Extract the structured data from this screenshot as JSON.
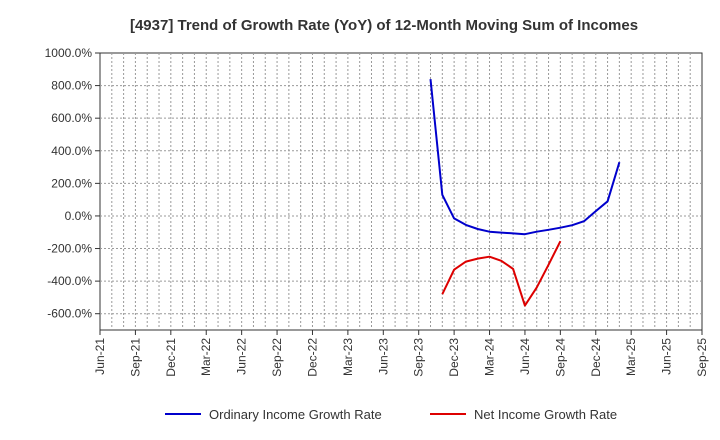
{
  "chart_data": {
    "type": "line",
    "title": "[4937]  Trend of Growth Rate (YoY) of 12-Month Moving Sum of Incomes",
    "xlabel": "",
    "ylabel": "",
    "ylim": [
      -700,
      1000
    ],
    "yticks": [
      1000,
      800,
      600,
      400,
      200,
      0,
      -200,
      -400,
      -600
    ],
    "ytick_labels": [
      "1000.0%",
      "800.0%",
      "600.0%",
      "400.0%",
      "200.0%",
      "0.0%",
      "-200.0%",
      "-400.0%",
      "-600.0%"
    ],
    "xticks": [
      "Jun-21",
      "Sep-21",
      "Dec-21",
      "Mar-22",
      "Jun-22",
      "Sep-22",
      "Dec-22",
      "Mar-23",
      "Jun-23",
      "Sep-23",
      "Dec-23",
      "Mar-24",
      "Jun-24",
      "Sep-24",
      "Dec-24",
      "Mar-25",
      "Jun-25",
      "Sep-25"
    ],
    "xrange": [
      "2021-06",
      "2025-09"
    ],
    "grid": true,
    "legend_position": "bottom",
    "series": [
      {
        "name": "Ordinary Income Growth Rate",
        "color": "#0000cc",
        "points": [
          [
            "2023-10",
            840
          ],
          [
            "2023-11",
            130
          ],
          [
            "2023-12",
            -15
          ],
          [
            "2024-01",
            -55
          ],
          [
            "2024-02",
            -80
          ],
          [
            "2024-03",
            -97
          ],
          [
            "2024-04",
            -102
          ],
          [
            "2024-05",
            -107
          ],
          [
            "2024-06",
            -112
          ],
          [
            "2024-07",
            -97
          ],
          [
            "2024-08",
            -85
          ],
          [
            "2024-09",
            -72
          ],
          [
            "2024-10",
            -57
          ],
          [
            "2024-11",
            -32
          ],
          [
            "2024-12",
            30
          ],
          [
            "2025-01",
            90
          ],
          [
            "2025-02",
            330
          ]
        ]
      },
      {
        "name": "Net Income Growth Rate",
        "color": "#dd0000",
        "points": [
          [
            "2023-11",
            -480
          ],
          [
            "2023-12",
            -330
          ],
          [
            "2024-01",
            -280
          ],
          [
            "2024-02",
            -262
          ],
          [
            "2024-03",
            -250
          ],
          [
            "2024-04",
            -275
          ],
          [
            "2024-05",
            -325
          ],
          [
            "2024-06",
            -550
          ],
          [
            "2024-07",
            -440
          ],
          [
            "2024-08",
            -300
          ],
          [
            "2024-09",
            -155
          ]
        ]
      }
    ]
  }
}
